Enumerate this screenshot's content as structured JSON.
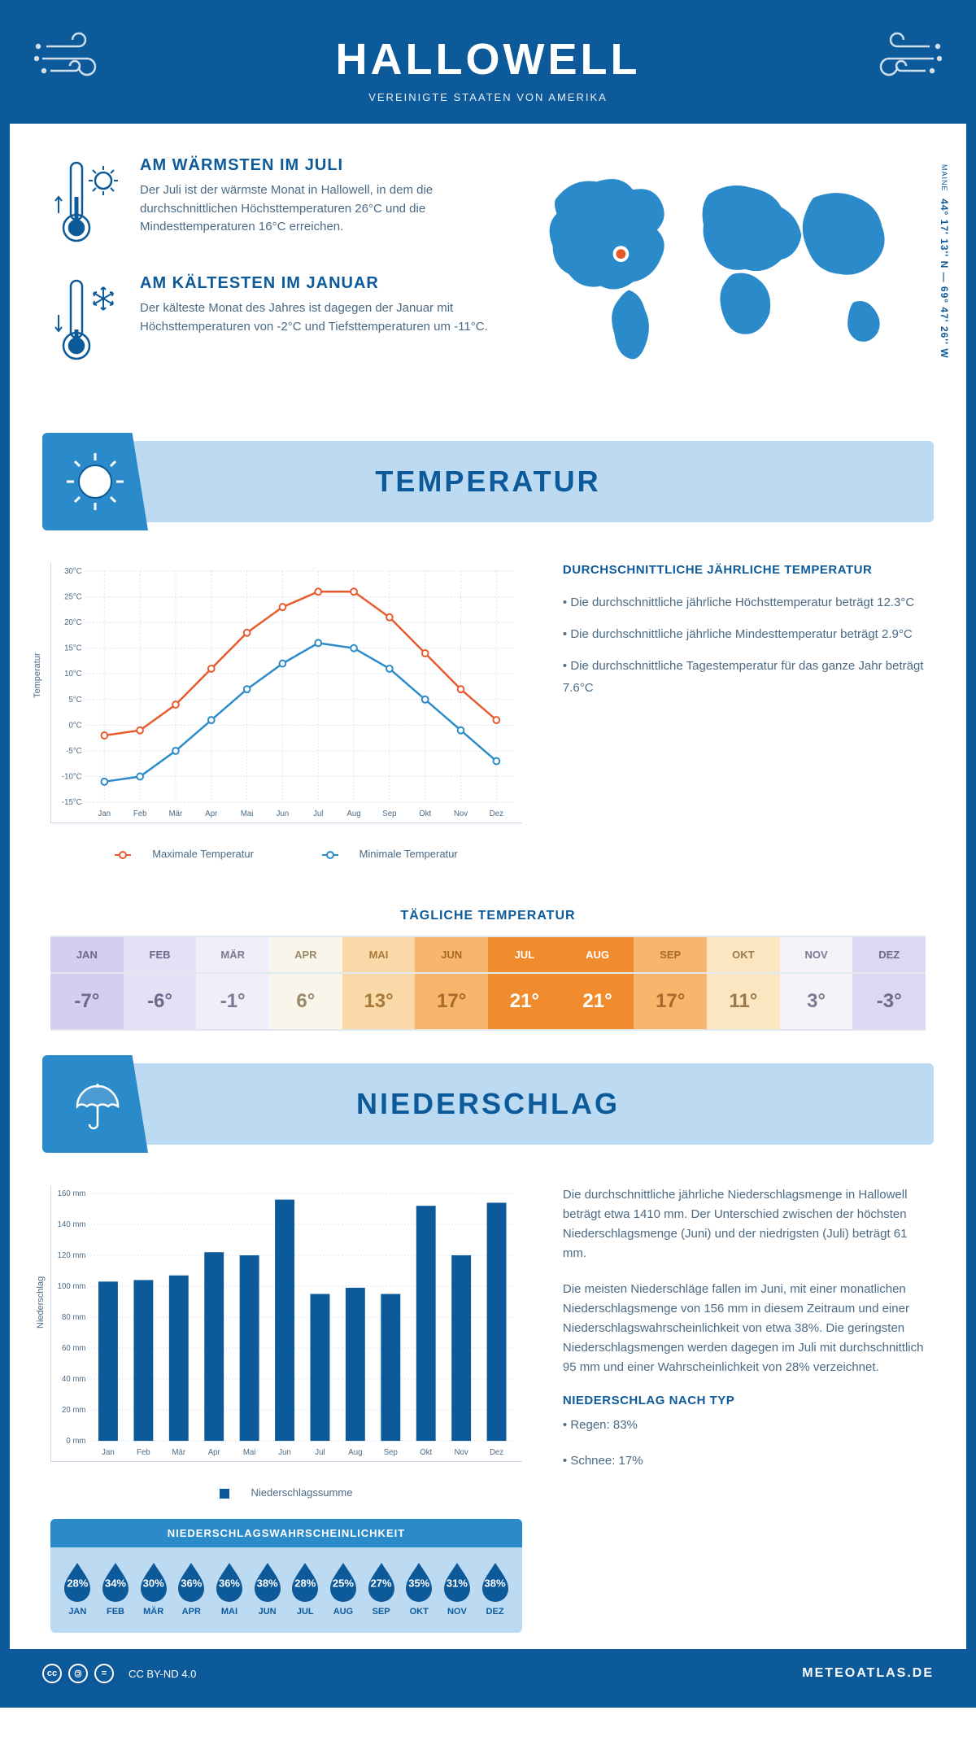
{
  "header": {
    "title": "HALLOWELL",
    "subtitle": "VEREINIGTE STAATEN VON AMERIKA"
  },
  "coords": {
    "state": "MAINE",
    "lat_lon": "44° 17' 13'' N — 69° 47' 26'' W"
  },
  "facts": {
    "warm": {
      "title": "AM WÄRMSTEN IM JULI",
      "text": "Der Juli ist der wärmste Monat in Hallowell, in dem die durchschnittlichen Höchsttemperaturen 26°C und die Mindesttemperaturen 16°C erreichen."
    },
    "cold": {
      "title": "AM KÄLTESTEN IM JANUAR",
      "text": "Der kälteste Monat des Jahres ist dagegen der Januar mit Höchsttemperaturen von -2°C und Tiefsttemperaturen um -11°C."
    }
  },
  "sections": {
    "temperature": "TEMPERATUR",
    "precipitation": "NIEDERSCHLAG"
  },
  "months": [
    "Jan",
    "Feb",
    "Mär",
    "Apr",
    "Mai",
    "Jun",
    "Jul",
    "Aug",
    "Sep",
    "Okt",
    "Nov",
    "Dez"
  ],
  "months_upper": [
    "JAN",
    "FEB",
    "MÄR",
    "APR",
    "MAI",
    "JUN",
    "JUL",
    "AUG",
    "SEP",
    "OKT",
    "NOV",
    "DEZ"
  ],
  "temp_chart": {
    "ylabel": "Temperatur",
    "ymin": -15,
    "ymax": 30,
    "ystep": 5,
    "max_series": {
      "label": "Maximale Temperatur",
      "color": "#e85a2c",
      "values": [
        -2,
        -1,
        4,
        11,
        18,
        23,
        26,
        26,
        21,
        14,
        7,
        1
      ]
    },
    "min_series": {
      "label": "Minimale Temperatur",
      "color": "#2b8ac9",
      "values": [
        -11,
        -10,
        -5,
        1,
        7,
        12,
        16,
        15,
        11,
        5,
        -1,
        -7
      ]
    }
  },
  "temp_info": {
    "title": "DURCHSCHNITTLICHE JÄHRLICHE TEMPERATUR",
    "bullets": [
      "• Die durchschnittliche jährliche Höchsttemperatur beträgt 12.3°C",
      "• Die durchschnittliche jährliche Mindesttemperatur beträgt 2.9°C",
      "• Die durchschnittliche Tagestemperatur für das ganze Jahr beträgt 7.6°C"
    ]
  },
  "daily": {
    "title": "TÄGLICHE TEMPERATUR",
    "values": [
      "-7°",
      "-6°",
      "-1°",
      "6°",
      "13°",
      "17°",
      "21°",
      "21°",
      "17°",
      "11°",
      "3°",
      "-3°"
    ],
    "bg": [
      "#d4cff0",
      "#e4e0f5",
      "#f0eef8",
      "#faf5ea",
      "#fad9a8",
      "#f7b66b",
      "#f08b2e",
      "#f08b2e",
      "#f7b66b",
      "#fce6c2",
      "#f5f3f8",
      "#ddd8f2"
    ],
    "fg": [
      "#6a6a8a",
      "#6a6a8a",
      "#7a7a95",
      "#9a8a6a",
      "#a87a3a",
      "#a86a2a",
      "#ffffff",
      "#ffffff",
      "#a86a2a",
      "#9a7a4a",
      "#7a7a95",
      "#6a6a8a"
    ]
  },
  "precip_chart": {
    "ylabel": "Niederschlag",
    "legend": "Niederschlagssumme",
    "ymin": 0,
    "ymax": 160,
    "ystep": 20,
    "color": "#0d5a9a",
    "values": [
      103,
      104,
      107,
      122,
      120,
      156,
      95,
      99,
      95,
      152,
      120,
      154
    ]
  },
  "precip_text": {
    "p1": "Die durchschnittliche jährliche Niederschlagsmenge in Hallowell beträgt etwa 1410 mm. Der Unterschied zwischen der höchsten Niederschlagsmenge (Juni) und der niedrigsten (Juli) beträgt 61 mm.",
    "p2": "Die meisten Niederschläge fallen im Juni, mit einer monatlichen Niederschlagsmenge von 156 mm in diesem Zeitraum und einer Niederschlagswahrscheinlichkeit von etwa 38%. Die geringsten Niederschlagsmengen werden dagegen im Juli mit durchschnittlich 95 mm und einer Wahrscheinlichkeit von 28% verzeichnet.",
    "type_title": "NIEDERSCHLAG NACH TYP",
    "type_1": "• Regen: 83%",
    "type_2": "• Schnee: 17%"
  },
  "prob": {
    "title": "NIEDERSCHLAGSWAHRSCHEINLICHKEIT",
    "values": [
      "28%",
      "34%",
      "30%",
      "36%",
      "36%",
      "38%",
      "28%",
      "25%",
      "27%",
      "35%",
      "31%",
      "38%"
    ]
  },
  "footer": {
    "license": "CC BY-ND 4.0",
    "site": "METEOATLAS.DE"
  }
}
